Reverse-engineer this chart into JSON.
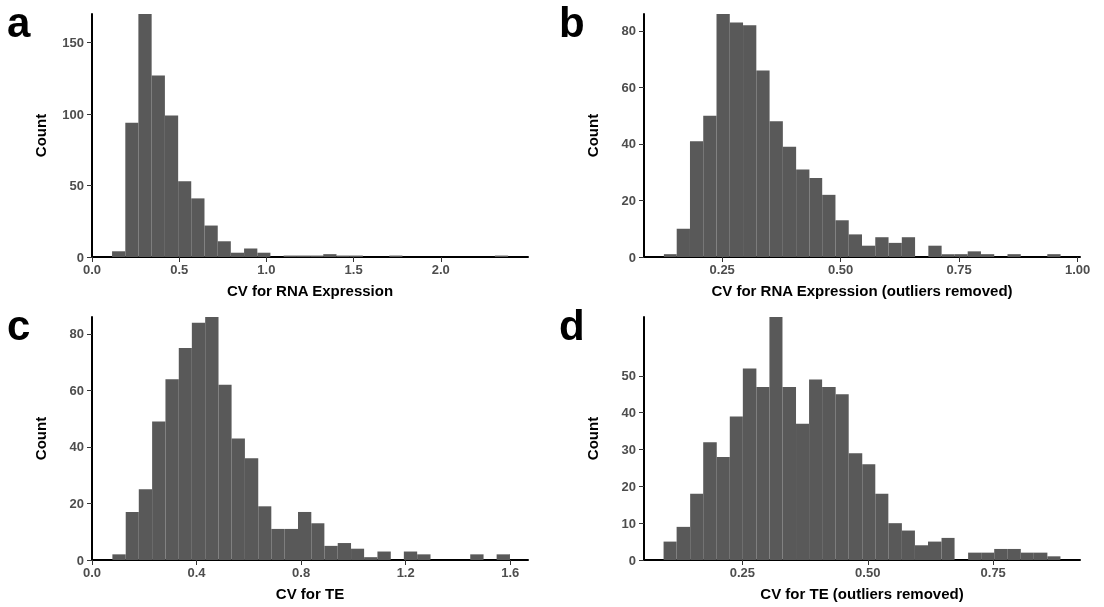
{
  "chart_data": [
    {
      "type": "histogram",
      "title": "a",
      "xlabel": "CV for RNA Expression",
      "ylabel": "Count",
      "color": "#595959",
      "grid": false,
      "bins": [
        0.115,
        0.191,
        0.266,
        0.342,
        0.418,
        0.494,
        0.569,
        0.645,
        0.721,
        0.796,
        0.872,
        0.948,
        1.023,
        1.099,
        1.175,
        1.251,
        1.326,
        1.402,
        1.478,
        1.553,
        1.629,
        1.705,
        1.78,
        1.856,
        1.932,
        2.008,
        2.083,
        2.159,
        2.235,
        2.31,
        2.386
      ],
      "values": [
        4,
        94,
        170,
        127,
        99,
        53,
        41,
        22,
        11,
        3,
        6,
        3,
        0,
        1,
        1,
        1,
        2,
        1,
        1,
        0,
        0,
        1,
        0,
        0,
        0,
        0,
        0,
        0,
        0,
        1
      ],
      "xlim": [
        0,
        2.5
      ],
      "xticks": [
        {
          "value": 0,
          "label": "0.0"
        },
        0.5,
        {
          "value": 1,
          "label": "1.0"
        },
        1.5,
        {
          "value": 2,
          "label": "2.0"
        }
      ],
      "ylim": [
        0,
        170
      ],
      "yticks": [
        0,
        50,
        100,
        150
      ]
    },
    {
      "type": "histogram",
      "title": "b",
      "xlabel": "CV for RNA Expression (outliers removed)",
      "ylabel": "Count",
      "color": "#595959",
      "grid": false,
      "bins": [
        0.127,
        0.154,
        0.182,
        0.21,
        0.238,
        0.266,
        0.294,
        0.322,
        0.35,
        0.378,
        0.406,
        0.434,
        0.461,
        0.489,
        0.517,
        0.545,
        0.573,
        0.601,
        0.629,
        0.657,
        0.685,
        0.713,
        0.74,
        0.768,
        0.796,
        0.824,
        0.852,
        0.88,
        0.908,
        0.936,
        0.964
      ],
      "values": [
        1,
        10,
        41,
        50,
        86,
        83,
        82,
        66,
        48,
        39,
        31,
        28,
        22,
        13,
        8,
        4,
        7,
        5,
        7,
        0,
        4,
        1,
        1,
        2,
        1,
        0,
        1,
        0,
        0,
        1
      ],
      "xlim": [
        0.085,
        1.005
      ],
      "xticks": [
        0.25,
        {
          "value": 0.5,
          "label": "0.50"
        },
        0.75,
        {
          "value": 1,
          "label": "1.00"
        }
      ],
      "ylim": [
        0,
        86
      ],
      "yticks": [
        0,
        20,
        40,
        60,
        80
      ]
    },
    {
      "type": "histogram",
      "title": "c",
      "xlabel": "CV for TE",
      "ylabel": "Count",
      "color": "#595959",
      "grid": false,
      "bins": [
        0.078,
        0.129,
        0.179,
        0.23,
        0.281,
        0.332,
        0.382,
        0.433,
        0.484,
        0.534,
        0.585,
        0.636,
        0.686,
        0.737,
        0.788,
        0.839,
        0.889,
        0.94,
        0.991,
        1.041,
        1.092,
        1.143,
        1.193,
        1.244,
        1.295,
        1.346,
        1.396,
        1.447,
        1.498,
        1.548,
        1.599
      ],
      "values": [
        2,
        17,
        25,
        49,
        64,
        75,
        84,
        86,
        62,
        43,
        36,
        19,
        11,
        11,
        17,
        13,
        5,
        6,
        4,
        1,
        3,
        0,
        3,
        2,
        0,
        0,
        0,
        2,
        0,
        2
      ],
      "xlim": [
        0,
        1.668
      ],
      "xticks": [
        {
          "value": 0,
          "label": "0.0"
        },
        0.4,
        0.8,
        1.2,
        1.6
      ],
      "ylim": [
        0,
        86
      ],
      "yticks": [
        0,
        20,
        40,
        60,
        80
      ]
    },
    {
      "type": "histogram",
      "title": "d",
      "xlabel": "CV for TE (outliers removed)",
      "ylabel": "Count",
      "color": "#595959",
      "grid": false,
      "bins": [
        0.093,
        0.119,
        0.146,
        0.172,
        0.199,
        0.225,
        0.251,
        0.278,
        0.304,
        0.33,
        0.357,
        0.383,
        0.409,
        0.436,
        0.462,
        0.489,
        0.515,
        0.541,
        0.568,
        0.594,
        0.62,
        0.647,
        0.673,
        0.7,
        0.726,
        0.752,
        0.779,
        0.805,
        0.831,
        0.858,
        0.884
      ],
      "values": [
        5,
        9,
        18,
        32,
        28,
        39,
        52,
        47,
        66,
        47,
        37,
        49,
        47,
        45,
        29,
        26,
        18,
        10,
        8,
        4,
        5,
        6,
        0,
        2,
        2,
        3,
        3,
        2,
        2,
        1
      ],
      "xlim": [
        0.054,
        0.923
      ],
      "xticks": [
        0.25,
        {
          "value": 0.5,
          "label": "0.50"
        },
        0.75
      ],
      "ylim": [
        0,
        66
      ],
      "yticks": [
        0,
        10,
        20,
        30,
        40,
        50
      ]
    }
  ]
}
